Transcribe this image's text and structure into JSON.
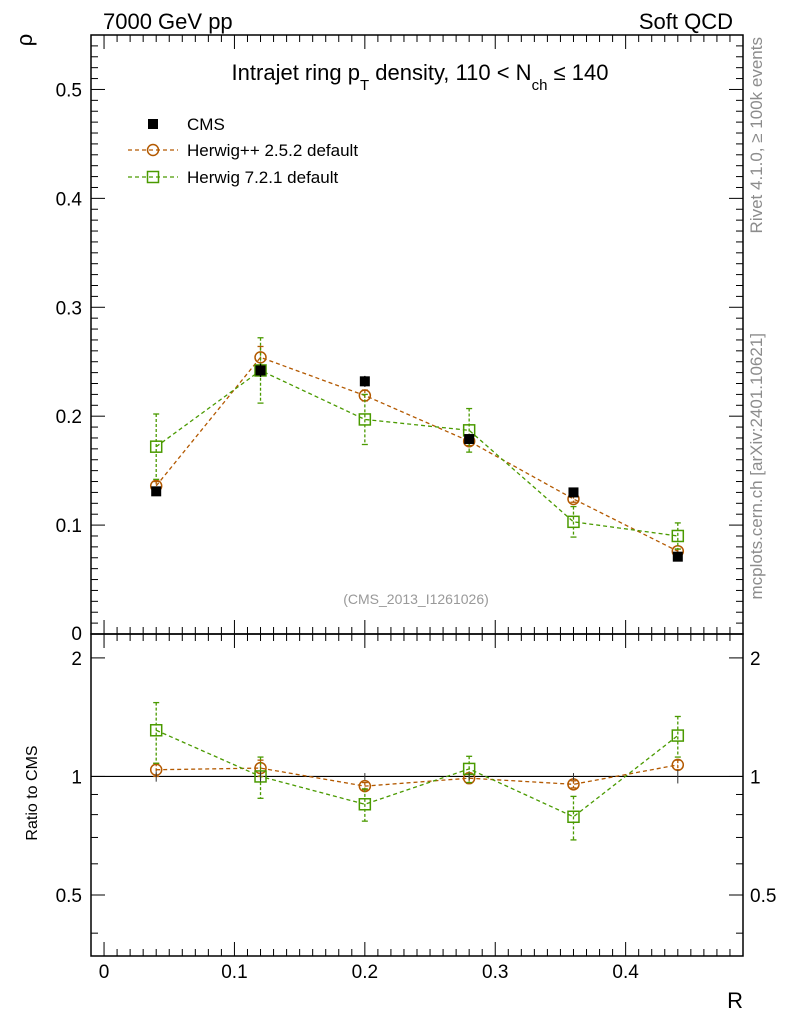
{
  "header": {
    "left": "7000 GeV pp",
    "right": "Soft QCD"
  },
  "side_text": {
    "rivet": "Rivet 4.1.0, ≥ 100k events",
    "mcplots": "mcplots.cern.ch [arXiv:2401.10621]"
  },
  "chart_data": {
    "type": "line",
    "title_parts": {
      "pre": "Intrajet ring p",
      "sub1": "T",
      "mid": " density, 110 < N",
      "sub2": "ch",
      "post": " ≤ 140"
    },
    "analysis_tag": "(CMS_2013_I1261026)",
    "xlabel": "R",
    "ylabel": "ρ",
    "ratio_ylabel": "Ratio to CMS",
    "xlim": [
      -0.01,
      0.49
    ],
    "ylim": [
      0,
      0.55
    ],
    "ratio_ylim": [
      0.35,
      2.3
    ],
    "x_ticks": [
      0,
      0.1,
      0.2,
      0.3,
      0.4
    ],
    "x_tick_labels": [
      "0",
      "0.1",
      "0.2",
      "0.3",
      "0.4"
    ],
    "y_ticks": [
      0.1,
      0.2,
      0.3,
      0.4,
      0.5
    ],
    "y_tick_labels": [
      "0.1",
      "0.2",
      "0.3",
      "0.4",
      "0.5"
    ],
    "y_zero_label": "0",
    "ratio_ticks": [
      0.5,
      1,
      2
    ],
    "ratio_tick_labels": [
      "0.5",
      "1",
      "2"
    ],
    "x": [
      0.04,
      0.12,
      0.2,
      0.28,
      0.36,
      0.44
    ],
    "series": [
      {
        "name": "CMS",
        "marker": "filled-square",
        "color": "#000000",
        "values": [
          0.131,
          0.242,
          0.232,
          0.179,
          0.13,
          0.071
        ],
        "errors": [
          0.004,
          0.006,
          0.005,
          0.004,
          0.003,
          0.003
        ],
        "ratio": [
          1,
          1,
          1,
          1,
          1,
          1
        ],
        "ratio_errors": [
          0.03,
          0.03,
          0.02,
          0.02,
          0.02,
          0.04
        ]
      },
      {
        "name": "Herwig++ 2.5.2 default",
        "marker": "open-circle",
        "color": "#b35900",
        "values": [
          0.136,
          0.254,
          0.219,
          0.177,
          0.124,
          0.076
        ],
        "errors": [
          0.004,
          0.01,
          0.005,
          0.004,
          0.003,
          0.002
        ],
        "ratio": [
          1.04,
          1.05,
          0.945,
          0.99,
          0.955,
          1.07
        ],
        "ratio_errors": [
          0.04,
          0.05,
          0.02,
          0.03,
          0.02,
          0.03
        ]
      },
      {
        "name": "Herwig 7.2.1 default",
        "marker": "open-square",
        "color": "#4a9a00",
        "values": [
          0.172,
          0.242,
          0.197,
          0.187,
          0.103,
          0.09
        ],
        "errors": [
          0.03,
          0.03,
          0.023,
          0.02,
          0.014,
          0.012
        ],
        "ratio": [
          1.31,
          1.0,
          0.85,
          1.045,
          0.79,
          1.27
        ],
        "ratio_errors": [
          0.23,
          0.12,
          0.08,
          0.08,
          0.1,
          0.15
        ]
      }
    ]
  }
}
